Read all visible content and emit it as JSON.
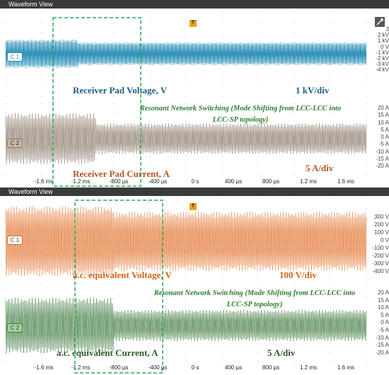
{
  "views": [
    {
      "title": "Waveform View",
      "trigger_label": "T",
      "ch1": {
        "badge": "C 1",
        "color": "#2b8fb8",
        "label": "Receiver Pad Voltage, V",
        "scale_text": "1 kV/div",
        "scale_ticks": [
          "3",
          "2 kV",
          "1 kV",
          "0 V",
          "-1 kV",
          "-2 kV",
          "-3 kV",
          "-4 kV"
        ]
      },
      "ch2": {
        "badge": "C 2",
        "color": "#8a7868",
        "label": "Receiver Pad Current, A",
        "scale_text": "5 A/div",
        "note_line1": "Resonant Network Switching (Mode Shifting from LCC-LCC into",
        "note_line2": "LCC-SP topology)",
        "scale_ticks": [
          "20 A",
          "15 A",
          "10 A",
          "5 A",
          "0 A",
          "-5 A",
          "-10 A",
          "-15 A",
          "-20 A"
        ]
      },
      "time_ticks": [
        "-1.6 ms",
        "-1.2 ms",
        "-800 µs",
        "-400 µs",
        "0 s",
        "400 µs",
        "800 µs",
        "1.2 ms",
        "1.6 ms"
      ]
    },
    {
      "title": "Waveform View",
      "trigger_label": "T",
      "ch1": {
        "badge": "C 1",
        "color": "#e06a20",
        "label": "a.c. equivalent Voltage, V",
        "scale_text": "100 V/div",
        "scale_ticks": [
          "300 V",
          "200 V",
          "100 V",
          "0 V",
          "-100 V",
          "-200 V",
          "-300 V",
          "-400 V"
        ]
      },
      "ch2": {
        "badge": "C 2",
        "color": "#3f7a3f",
        "label": "a.c. equivalent Current, A",
        "scale_text": "5 A/div",
        "note_line1": "Resonant Network Switching (Mode Shifting from LCC-LCC into",
        "note_line2": "LCC-SP topology)",
        "scale_ticks": [
          "20 A",
          "15 A",
          "10 A",
          "5 A",
          "0 A",
          "-5 A",
          "-10 A",
          "-15 A",
          "-20 A"
        ]
      },
      "time_ticks": [
        "-1.6 ms",
        "-1.2 ms",
        "-800 µs",
        "-400 µs",
        "0 s",
        "400 µs",
        "800 µs",
        "1.2 ms",
        "1.6 ms"
      ]
    }
  ]
}
